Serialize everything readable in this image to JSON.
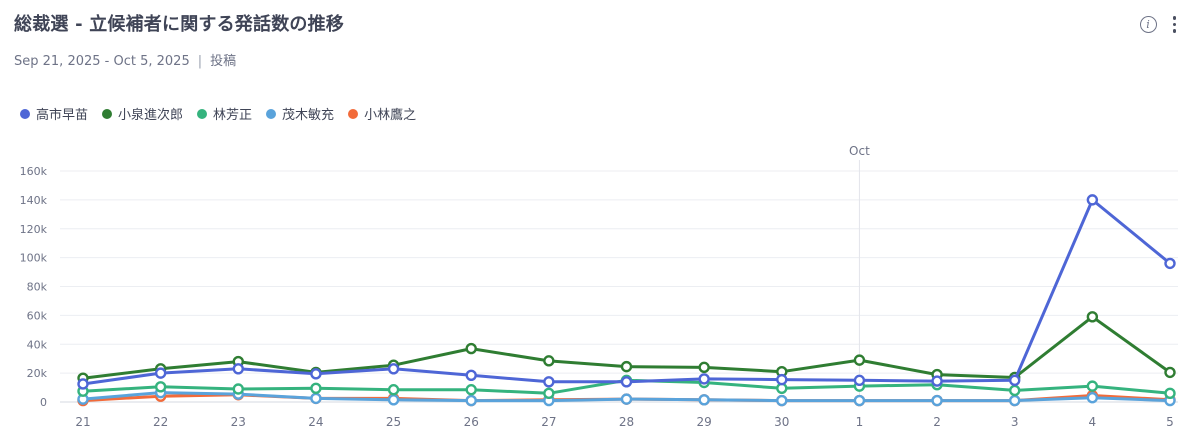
{
  "header": {
    "title": "総裁選 - 立候補者に関する発話数の推移",
    "date_range": "Sep 21, 2025 - Oct 5, 2025",
    "separator": "|",
    "metric": "投稿"
  },
  "icons": {
    "info": "info-icon",
    "more": "more-vertical-icon"
  },
  "chart_data": {
    "type": "line",
    "x": [
      "21",
      "22",
      "23",
      "24",
      "25",
      "26",
      "27",
      "28",
      "29",
      "30",
      "1",
      "2",
      "3",
      "4",
      "5"
    ],
    "marker_label": "Oct",
    "marker_index": 10,
    "y_ticks": [
      "0",
      "20k",
      "40k",
      "60k",
      "80k",
      "100k",
      "120k",
      "140k",
      "160k"
    ],
    "ylim": [
      0,
      160000
    ],
    "grid": true,
    "legend_position": "top-left",
    "series": [
      {
        "name": "高市早苗",
        "color": "#4e66d6",
        "values": [
          12500,
          20000,
          23000,
          19500,
          23000,
          18500,
          14000,
          14000,
          16000,
          15500,
          15000,
          14500,
          15000,
          140000,
          96000
        ]
      },
      {
        "name": "小泉進次郎",
        "color": "#2f7d32",
        "values": [
          16500,
          23000,
          28000,
          20500,
          25500,
          37000,
          28500,
          24500,
          24000,
          21000,
          29000,
          19000,
          17000,
          59000,
          20500
        ]
      },
      {
        "name": "林芳正",
        "color": "#35b37e",
        "values": [
          7500,
          10500,
          9000,
          9500,
          8500,
          8500,
          6000,
          15000,
          13500,
          9500,
          11000,
          12000,
          8000,
          11000,
          6000
        ]
      },
      {
        "name": "茂木敏充",
        "color": "#5aa3db",
        "values": [
          2000,
          6500,
          5500,
          2500,
          1500,
          1000,
          1000,
          2000,
          1500,
          1000,
          1000,
          1000,
          1000,
          3000,
          1000
        ]
      },
      {
        "name": "小林鷹之",
        "color": "#f26b3a",
        "values": [
          1000,
          4000,
          5000,
          2500,
          2500,
          1000,
          1500,
          2000,
          1500,
          1000,
          1000,
          1000,
          1000,
          4500,
          1500
        ]
      }
    ]
  }
}
